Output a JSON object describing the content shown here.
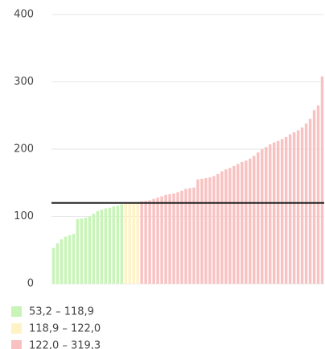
{
  "chart_data": {
    "type": "bar",
    "values": [
      53.2,
      60,
      66,
      70,
      72,
      74,
      96,
      97,
      98,
      100,
      104,
      108,
      110,
      112,
      113,
      115,
      116,
      118,
      119.2,
      119.8,
      120.5,
      121.5,
      122.5,
      123,
      124,
      126,
      128,
      130,
      132,
      133,
      134,
      136,
      138,
      141,
      142,
      143,
      155,
      156,
      157,
      158,
      160,
      163,
      167,
      170,
      172,
      175,
      178,
      181,
      183,
      186,
      190,
      195,
      200,
      203,
      207,
      210,
      212,
      215,
      218,
      222,
      225,
      228,
      232,
      238,
      245,
      258,
      265,
      308
    ],
    "ylim": [
      0,
      400
    ],
    "yticks": [
      0,
      100,
      200,
      300,
      400
    ],
    "grid": true,
    "reference_line": 120,
    "legend": [
      {
        "label": "53,2 – 118,9",
        "color": "#c8f4b8",
        "min": 53.2,
        "max": 118.9
      },
      {
        "label": "118,9 – 122,0",
        "color": "#fff3c6",
        "min": 118.9,
        "max": 122.0
      },
      {
        "label": "122,0 – 319,3",
        "color": "#f9c2c2",
        "min": 122.0,
        "max": 319.3
      }
    ]
  }
}
